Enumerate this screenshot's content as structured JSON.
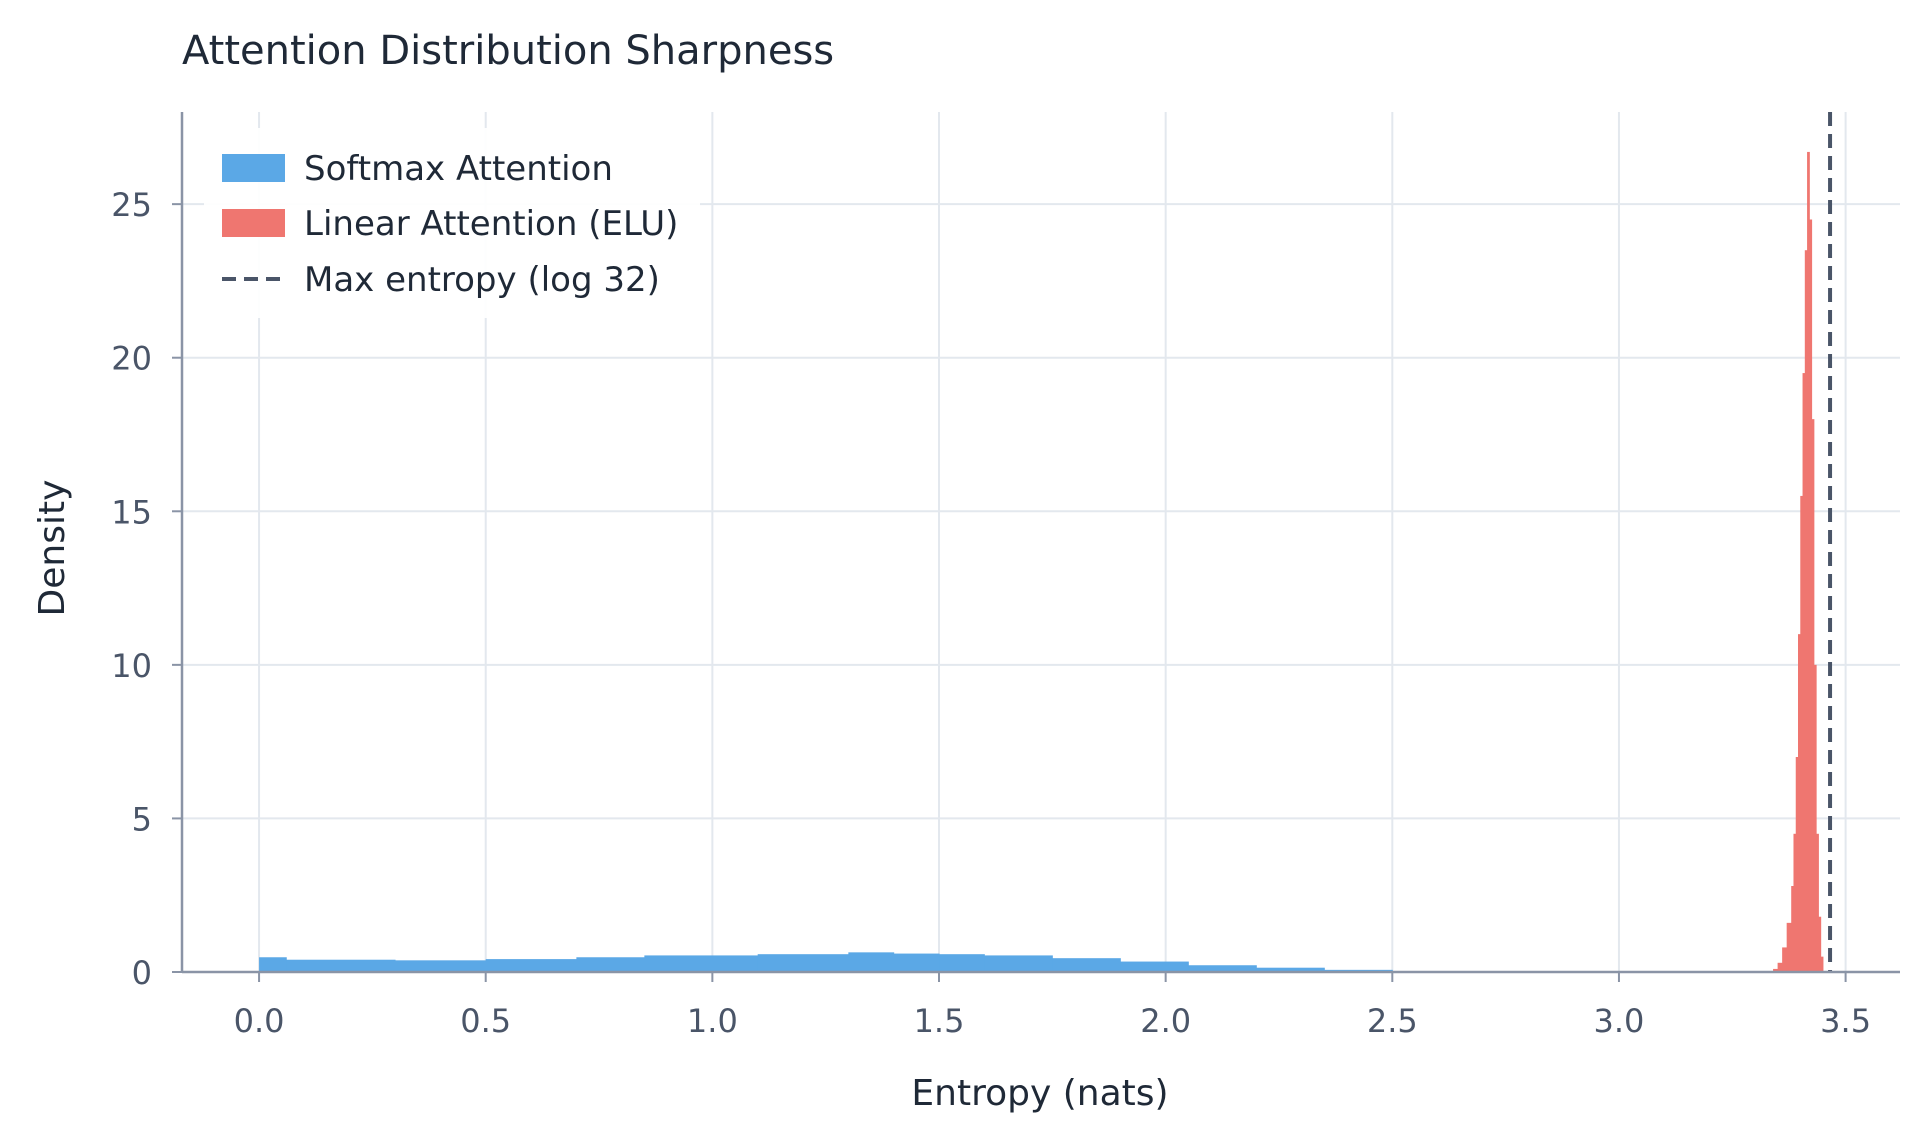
{
  "chart_data": {
    "type": "histogram",
    "title": "Attention Distribution Sharpness",
    "xlabel": "Entropy (nats)",
    "ylabel": "Density",
    "xlim": [
      -0.17,
      3.62
    ],
    "ylim": [
      0,
      28
    ],
    "xticks": [
      "0.0",
      "0.5",
      "1.0",
      "1.5",
      "2.0",
      "2.5",
      "3.0",
      "3.5"
    ],
    "yticks": [
      "0",
      "5",
      "10",
      "15",
      "20",
      "25"
    ],
    "grid": true,
    "legend_position": "top-left",
    "colors": {
      "softmax": "#5ba8e6",
      "linear": "#ef7670",
      "maxline": "#4a5568",
      "grid": "#e3e8ee",
      "axis": "#8a94a6",
      "text": "#4a5568",
      "title": "#1f2937"
    },
    "series": [
      {
        "name": "Softmax Attention",
        "kind": "hist",
        "bins": [
          [
            0.0,
            0.06,
            0.48
          ],
          [
            0.06,
            0.3,
            0.4
          ],
          [
            0.3,
            0.5,
            0.38
          ],
          [
            0.5,
            0.7,
            0.42
          ],
          [
            0.7,
            0.85,
            0.48
          ],
          [
            0.85,
            1.1,
            0.54
          ],
          [
            1.1,
            1.3,
            0.58
          ],
          [
            1.3,
            1.4,
            0.64
          ],
          [
            1.4,
            1.5,
            0.6
          ],
          [
            1.5,
            1.6,
            0.58
          ],
          [
            1.6,
            1.75,
            0.54
          ],
          [
            1.75,
            1.9,
            0.45
          ],
          [
            1.9,
            2.05,
            0.34
          ],
          [
            2.05,
            2.2,
            0.22
          ],
          [
            2.2,
            2.35,
            0.14
          ],
          [
            2.35,
            2.5,
            0.07
          ],
          [
            2.5,
            2.7,
            0.03
          ],
          [
            2.7,
            3.0,
            0.01
          ]
        ]
      },
      {
        "name": "Linear Attention (ELU)",
        "kind": "hist",
        "bins": [
          [
            3.34,
            3.35,
            0.1
          ],
          [
            3.35,
            3.36,
            0.3
          ],
          [
            3.36,
            3.37,
            0.8
          ],
          [
            3.37,
            3.38,
            1.6
          ],
          [
            3.38,
            3.385,
            2.8
          ],
          [
            3.385,
            3.39,
            4.5
          ],
          [
            3.39,
            3.395,
            7.0
          ],
          [
            3.395,
            3.4,
            11.0
          ],
          [
            3.4,
            3.405,
            15.5
          ],
          [
            3.405,
            3.41,
            19.5
          ],
          [
            3.41,
            3.415,
            23.5
          ],
          [
            3.415,
            3.42,
            26.7
          ],
          [
            3.42,
            3.425,
            24.5
          ],
          [
            3.425,
            3.43,
            18.0
          ],
          [
            3.43,
            3.435,
            10.0
          ],
          [
            3.435,
            3.44,
            4.5
          ],
          [
            3.44,
            3.445,
            1.8
          ],
          [
            3.445,
            3.45,
            0.5
          ]
        ]
      },
      {
        "name": "Max entropy (log 32)",
        "kind": "vline",
        "x": 3.4657
      }
    ]
  }
}
